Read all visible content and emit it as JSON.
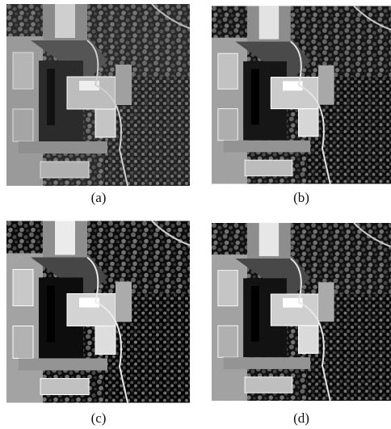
{
  "figure": {
    "panels": [
      {
        "caption": "(a)"
      },
      {
        "caption": "(b)"
      },
      {
        "caption": "(c)"
      },
      {
        "caption": "(d)"
      }
    ]
  }
}
